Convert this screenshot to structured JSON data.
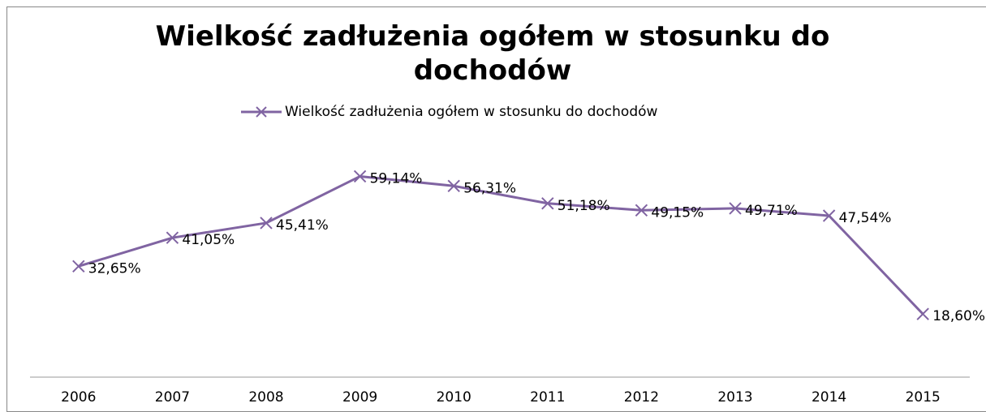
{
  "chart_data": {
    "type": "line",
    "title": "Wielkość zadłużenia ogółem w stosunku do dochodów",
    "categories": [
      "2006",
      "2007",
      "2008",
      "2009",
      "2010",
      "2011",
      "2012",
      "2013",
      "2014",
      "2015"
    ],
    "series": [
      {
        "name": "Wielkość zadłużenia ogółem w stosunku do dochodów",
        "color": "#8064a2",
        "values": [
          32.65,
          41.05,
          45.41,
          59.14,
          56.31,
          51.18,
          49.15,
          49.71,
          47.54,
          18.6
        ],
        "value_labels": [
          "32,65%",
          "41,05%",
          "45,41%",
          "59,14%",
          "56,31%",
          "51,18%",
          "49,15%",
          "49,71%",
          "47,54%",
          "18,60%"
        ]
      }
    ],
    "ylim": [
      0,
      70
    ]
  }
}
